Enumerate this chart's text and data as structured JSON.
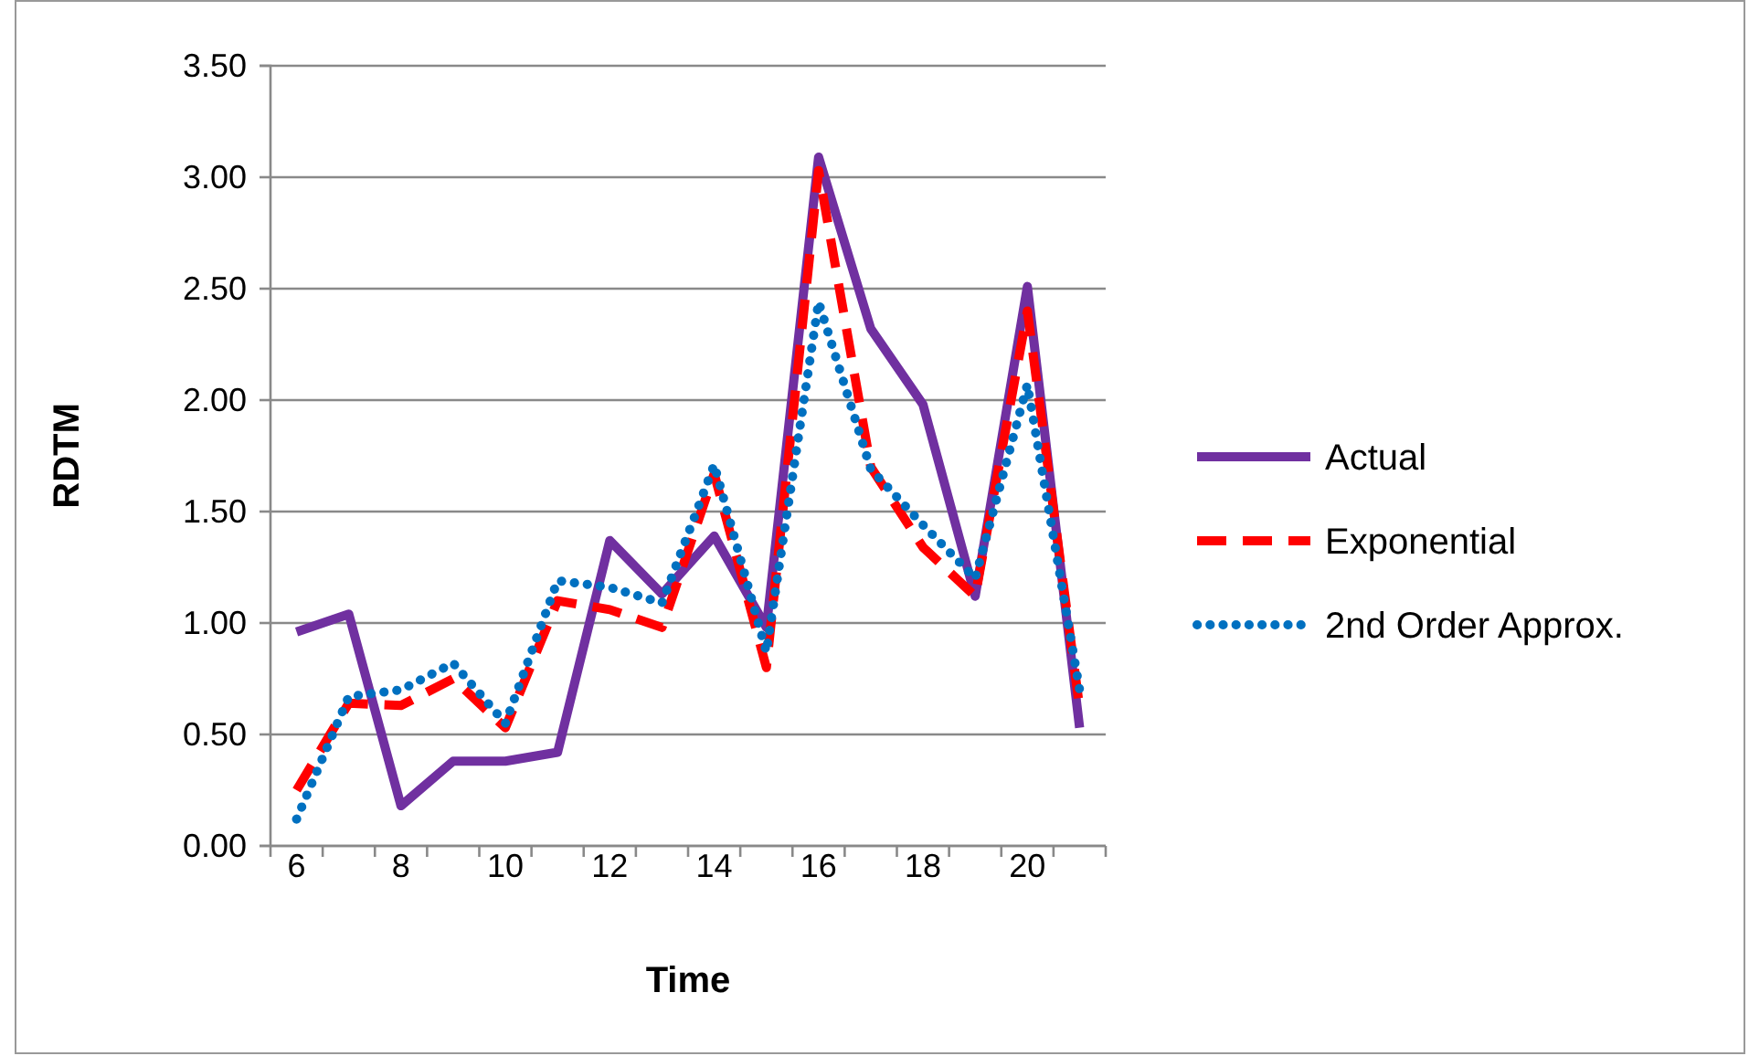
{
  "chart_data": {
    "type": "line",
    "xlabel": "Time",
    "ylabel": "RDTM",
    "categories": [
      "6",
      null,
      "8",
      null,
      "10",
      null,
      "12",
      null,
      "14",
      null,
      "16",
      null,
      "18",
      null,
      "20",
      null
    ],
    "series": [
      {
        "name": "Actual",
        "color": "#7030a0",
        "line_style": "solid",
        "values": [
          0.96,
          1.04,
          0.18,
          0.38,
          0.38,
          0.42,
          1.37,
          1.13,
          1.39,
          0.98,
          3.09,
          2.32,
          1.98,
          1.12,
          2.51,
          0.53
        ]
      },
      {
        "name": "Exponential",
        "color": "#ff0000",
        "line_style": "dashed",
        "values": [
          0.25,
          0.64,
          0.63,
          0.75,
          0.53,
          1.1,
          1.06,
          0.98,
          1.67,
          0.8,
          3.03,
          1.7,
          1.34,
          1.12,
          2.4,
          0.62
        ]
      },
      {
        "name": "2nd Order Approx.",
        "color": "#0070c0",
        "line_style": "dotted",
        "values": [
          0.12,
          0.67,
          0.7,
          0.82,
          0.55,
          1.19,
          1.16,
          1.09,
          1.71,
          0.87,
          2.44,
          1.69,
          1.44,
          1.2,
          2.07,
          0.7
        ]
      }
    ],
    "ylim": [
      0,
      3.5
    ],
    "yticks": [
      {
        "value": 0,
        "label": "0.00"
      },
      {
        "value": 0.5,
        "label": "0.50"
      },
      {
        "value": 1,
        "label": "1.00"
      },
      {
        "value": 1.5,
        "label": "1.50"
      },
      {
        "value": 2,
        "label": "2.00"
      },
      {
        "value": 2.5,
        "label": "2.50"
      },
      {
        "value": 3,
        "label": "3.00"
      },
      {
        "value": 3.5,
        "label": "3.50"
      }
    ],
    "grid": "y",
    "legend": "right",
    "marker": "none"
  }
}
